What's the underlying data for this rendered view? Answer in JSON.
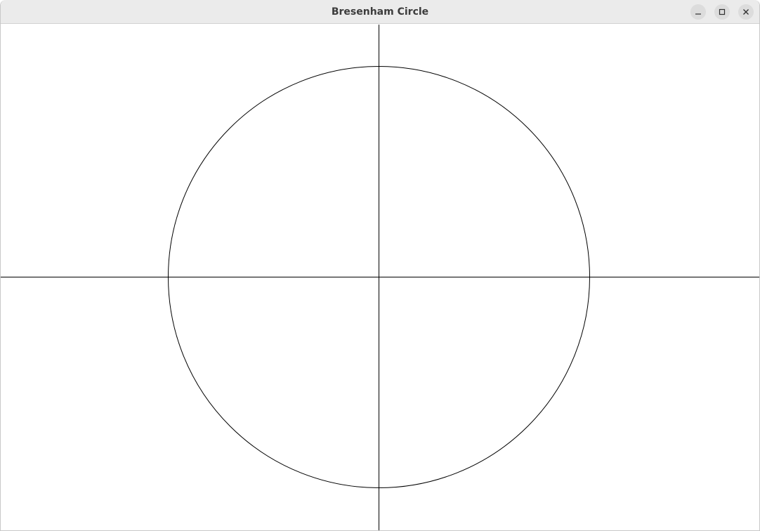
{
  "window": {
    "title": "Bresenham Circle"
  },
  "titlebar_buttons": {
    "minimize_icon": "minimize-icon",
    "maximize_icon": "maximize-icon",
    "close_icon": "close-icon"
  },
  "colors": {
    "titlebar_bg": "#ebebeb",
    "title_text": "#3c3c3c",
    "canvas_bg": "#ffffff",
    "stroke": "#000000"
  }
}
